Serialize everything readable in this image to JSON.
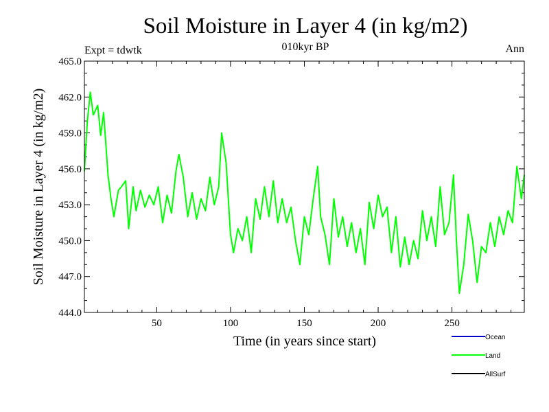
{
  "chart_data": {
    "type": "line",
    "title": "Soil Moisture in Layer 4 (in kg/m2)",
    "subtitle": "010kyr BP",
    "left_note": "Expt = tdwtk",
    "right_note": "Ann",
    "xlabel": "Time (in years since start)",
    "ylabel": "Soil Moisture in Layer 4 (in kg/m2)",
    "xlim": [
      1,
      299
    ],
    "ylim": [
      444.0,
      465.0
    ],
    "x_ticks": [
      50,
      100,
      150,
      200,
      250
    ],
    "y_ticks": [
      "444.0",
      "447.0",
      "450.0",
      "453.0",
      "456.0",
      "459.0",
      "462.0",
      "465.0"
    ],
    "legend": [
      {
        "name": "Ocean",
        "color": "#0000cc"
      },
      {
        "name": "Land",
        "color": "#00ff00"
      },
      {
        "name": "AllSurf",
        "color": "#000000"
      }
    ],
    "series": [
      {
        "name": "Land",
        "color": "#00ff00",
        "x": [
          1,
          3,
          5,
          7,
          10,
          12,
          14,
          17,
          19,
          21,
          24,
          26,
          29,
          31,
          34,
          36,
          39,
          42,
          45,
          48,
          51,
          54,
          57,
          60,
          63,
          65,
          68,
          71,
          74,
          77,
          80,
          83,
          86,
          89,
          92,
          94,
          97,
          100,
          102,
          105,
          108,
          111,
          114,
          117,
          120,
          123,
          126,
          129,
          132,
          135,
          138,
          141,
          144,
          147,
          150,
          153,
          156,
          159,
          161,
          164,
          167,
          170,
          173,
          176,
          179,
          182,
          185,
          188,
          191,
          194,
          197,
          200,
          203,
          206,
          209,
          212,
          215,
          218,
          221,
          224,
          227,
          230,
          233,
          236,
          239,
          242,
          245,
          248,
          251,
          253,
          255,
          258,
          261,
          264,
          267,
          270,
          273,
          276,
          279,
          282,
          285,
          288,
          291,
          294,
          297,
          299
        ],
        "values": [
          455.8,
          460.0,
          462.4,
          460.5,
          461.3,
          458.8,
          460.7,
          455.5,
          453.5,
          452.0,
          454.2,
          454.5,
          455.0,
          451.0,
          454.5,
          452.5,
          454.2,
          452.8,
          453.8,
          453.0,
          454.5,
          451.5,
          453.8,
          452.3,
          455.8,
          457.2,
          455.3,
          452.0,
          454.0,
          451.8,
          453.5,
          452.5,
          455.3,
          453.0,
          454.5,
          459.0,
          456.5,
          450.5,
          449.0,
          451.0,
          450.0,
          452.0,
          449.0,
          453.5,
          451.8,
          454.5,
          452.0,
          455.0,
          451.5,
          453.5,
          451.5,
          452.8,
          450.0,
          448.0,
          452.0,
          450.5,
          453.5,
          456.2,
          452.0,
          450.5,
          448.0,
          453.5,
          450.3,
          452.0,
          449.5,
          451.5,
          449.0,
          451.0,
          448.0,
          453.2,
          451.0,
          453.8,
          452.0,
          452.8,
          449.0,
          452.0,
          447.8,
          450.3,
          448.0,
          450.0,
          448.5,
          452.5,
          450.0,
          452.0,
          449.5,
          454.5,
          450.5,
          451.5,
          455.5,
          450.0,
          445.6,
          448.0,
          452.2,
          450.0,
          446.5,
          449.5,
          449.0,
          451.5,
          449.5,
          452.0,
          450.5,
          452.5,
          451.5,
          456.2,
          453.5,
          455.5
        ]
      }
    ]
  }
}
